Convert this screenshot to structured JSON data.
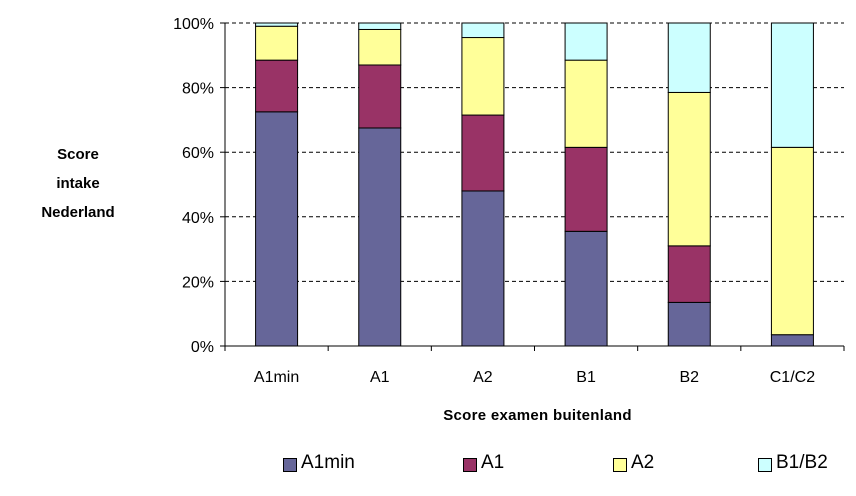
{
  "chart_data": {
    "type": "bar",
    "stacked": true,
    "percent": true,
    "categories": [
      "A1min",
      "A1",
      "A2",
      "B1",
      "B2",
      "C1/C2"
    ],
    "series": [
      {
        "name": "A1min",
        "color": "#666699",
        "values": [
          72.5,
          67.5,
          48,
          35.5,
          13.5,
          3.5
        ]
      },
      {
        "name": "A1",
        "color": "#993366",
        "values": [
          16,
          19.5,
          23.5,
          26,
          17.5,
          0
        ]
      },
      {
        "name": "A2",
        "color": "#FFFF99",
        "values": [
          10.5,
          11,
          24,
          27,
          47.5,
          58
        ]
      },
      {
        "name": "B1/B2",
        "color": "#CCFFFF",
        "values": [
          1,
          2,
          4.5,
          11.5,
          21.5,
          38.5
        ]
      }
    ],
    "ylabel_lines": [
      "Score",
      "intake",
      "Nederland"
    ],
    "xlabel": "Score examen buitenland",
    "yticks": [
      "0%",
      "20%",
      "40%",
      "60%",
      "80%",
      "100%"
    ],
    "ylim": [
      0,
      100
    ],
    "grid": true,
    "legend": "bottom"
  }
}
